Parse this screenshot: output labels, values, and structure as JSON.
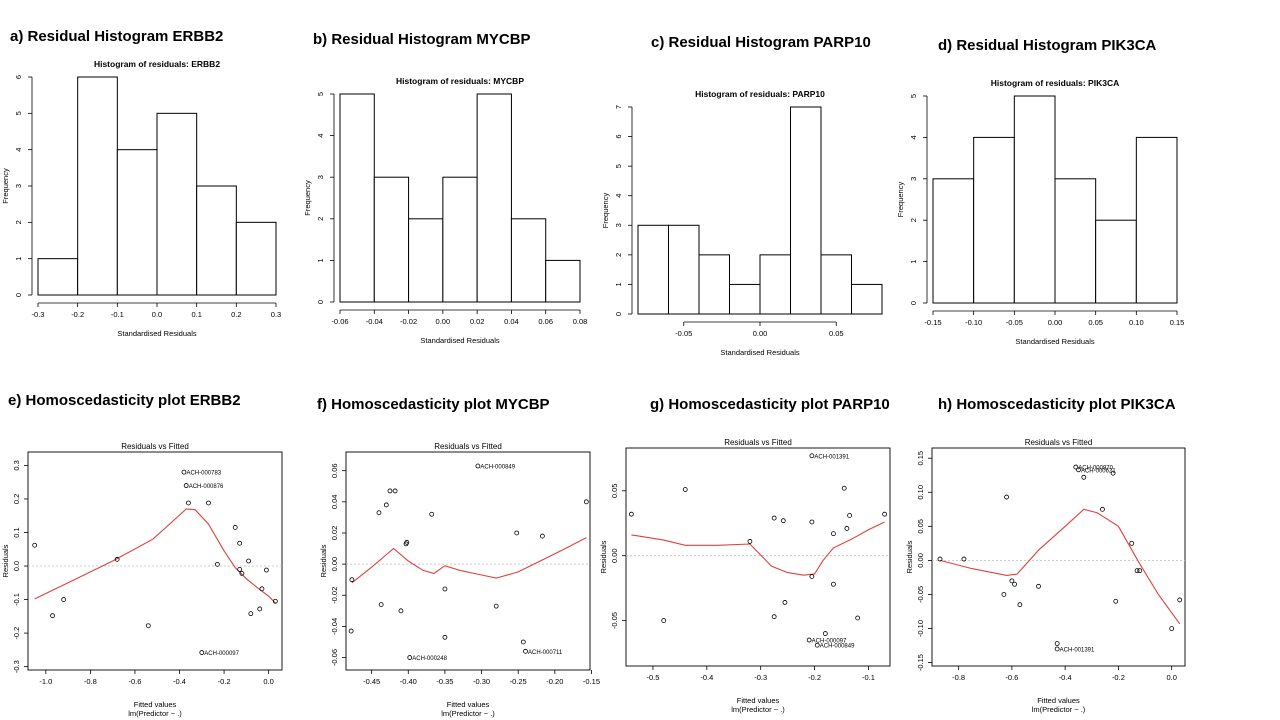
{
  "panels": [
    {
      "id": "a",
      "heading": "a) Residual Histogram ERBB2"
    },
    {
      "id": "b",
      "heading": "b) Residual Histogram MYCBP"
    },
    {
      "id": "c",
      "heading": "c) Residual Histogram PARP10"
    },
    {
      "id": "d",
      "heading": "d) Residual Histogram PIK3CA"
    },
    {
      "id": "e",
      "heading": "e) Homoscedasticity plot ERBB2"
    },
    {
      "id": "f",
      "heading": "f) Homoscedasticity plot MYCBP"
    },
    {
      "id": "g",
      "heading": "g) Homoscedasticity plot PARP10"
    },
    {
      "id": "h",
      "heading": "h) Homoscedasticity plot PIK3CA"
    }
  ],
  "chart_data": [
    {
      "type": "bar",
      "title": "Histogram of residuals: ERBB2",
      "xlabel": "Standardised Residuals",
      "ylabel": "Frequency",
      "bin_edges": [
        -0.3,
        -0.2,
        -0.1,
        0.0,
        0.1,
        0.2,
        0.3
      ],
      "values": [
        1,
        6,
        4,
        5,
        3,
        2
      ],
      "xlim": [
        -0.3,
        0.3
      ],
      "ylim": [
        0,
        6
      ],
      "xticks": [
        -0.3,
        -0.2,
        -0.1,
        0.0,
        0.1,
        0.2,
        0.3
      ],
      "xtick_labels": [
        "-0.3",
        "-0.2",
        "-0.1",
        "0.0",
        "0.1",
        "0.2",
        "0.3"
      ],
      "yticks": [
        0,
        1,
        2,
        3,
        4,
        5,
        6
      ],
      "grid": false
    },
    {
      "type": "bar",
      "title": "Histogram of residuals: MYCBP",
      "xlabel": "Standardised Residuals",
      "ylabel": "Frequency",
      "bin_edges": [
        -0.06,
        -0.04,
        -0.02,
        0.0,
        0.02,
        0.04,
        0.06,
        0.08
      ],
      "values": [
        5,
        3,
        2,
        3,
        5,
        2,
        1
      ],
      "xlim": [
        -0.06,
        0.08
      ],
      "ylim": [
        0,
        5
      ],
      "xticks": [
        -0.06,
        -0.04,
        -0.02,
        0.0,
        0.02,
        0.04,
        0.06,
        0.08
      ],
      "xtick_labels": [
        "-0.06",
        "-0.04",
        "-0.02",
        "0.00",
        "0.02",
        "0.04",
        "0.06",
        "0.08"
      ],
      "yticks": [
        0,
        1,
        2,
        3,
        4,
        5
      ],
      "grid": false
    },
    {
      "type": "bar",
      "title": "Histogram of residuals: PARP10",
      "xlabel": "Standardised Residuals",
      "ylabel": "Frequency",
      "bin_edges": [
        -0.08,
        -0.06,
        -0.04,
        -0.02,
        0.0,
        0.02,
        0.04,
        0.06,
        0.08
      ],
      "values": [
        3,
        3,
        2,
        1,
        2,
        7,
        2,
        1
      ],
      "xlim": [
        -0.08,
        0.08
      ],
      "ylim": [
        0,
        7
      ],
      "xticks": [
        -0.05,
        0.0,
        0.05
      ],
      "xtick_labels": [
        "-0.05",
        "0.00",
        "0.05"
      ],
      "yticks": [
        0,
        1,
        2,
        3,
        4,
        5,
        6,
        7
      ],
      "grid": false
    },
    {
      "type": "bar",
      "title": "Histogram of residuals: PIK3CA",
      "xlabel": "Standardised Residuals",
      "ylabel": "Frequency",
      "bin_edges": [
        -0.15,
        -0.1,
        -0.05,
        0.0,
        0.05,
        0.1,
        0.15
      ],
      "values": [
        3,
        4,
        5,
        3,
        2,
        4
      ],
      "xlim": [
        -0.15,
        0.15
      ],
      "ylim": [
        0,
        5
      ],
      "xticks": [
        -0.15,
        -0.1,
        -0.05,
        0.0,
        0.05,
        0.1,
        0.15
      ],
      "xtick_labels": [
        "-0.15",
        "-0.10",
        "-0.05",
        "0.00",
        "0.05",
        "0.10",
        "0.15"
      ],
      "yticks": [
        0,
        1,
        2,
        3,
        4,
        5
      ],
      "grid": false
    },
    {
      "type": "scatter",
      "title": "Residuals vs Fitted",
      "xlabel": "Fitted values",
      "xlabel2": "lm(Predictor ~ .)",
      "ylabel": "Residuals",
      "xlim": [
        -1.08,
        0.06
      ],
      "ylim": [
        -0.31,
        0.34
      ],
      "xticks": [
        -1.0,
        -0.8,
        -0.6,
        -0.4,
        -0.2,
        0.0
      ],
      "xtick_labels": [
        "-1.0",
        "-0.8",
        "-0.6",
        "-0.4",
        "-0.2",
        "0.0"
      ],
      "yticks": [
        -0.3,
        -0.2,
        -0.1,
        0.0,
        0.1,
        0.2,
        0.3
      ],
      "ytick_labels": [
        "-0.3",
        "-0.2",
        "-0.1",
        "0.0",
        "0.1",
        "0.2",
        "0.3"
      ],
      "points": [
        [
          -1.05,
          0.062
        ],
        [
          -0.97,
          -0.148
        ],
        [
          -0.92,
          -0.1
        ],
        [
          -0.68,
          0.02
        ],
        [
          -0.54,
          -0.178
        ],
        [
          -0.38,
          0.28
        ],
        [
          -0.37,
          0.24
        ],
        [
          -0.36,
          0.188
        ],
        [
          -0.3,
          -0.258
        ],
        [
          -0.27,
          0.188
        ],
        [
          -0.23,
          0.005
        ],
        [
          -0.15,
          0.115
        ],
        [
          -0.13,
          -0.01
        ],
        [
          -0.13,
          0.068
        ],
        [
          -0.12,
          -0.022
        ],
        [
          -0.09,
          0.015
        ],
        [
          -0.08,
          -0.142
        ],
        [
          -0.04,
          -0.128
        ],
        [
          -0.03,
          -0.068
        ],
        [
          -0.01,
          -0.012
        ],
        [
          0.03,
          -0.105
        ]
      ],
      "labels": [
        {
          "text": "ACH-000783",
          "x": -0.38,
          "y": 0.28
        },
        {
          "text": "ACH-000876",
          "x": -0.37,
          "y": 0.24
        },
        {
          "text": "ACH-000097",
          "x": -0.3,
          "y": -0.258
        }
      ],
      "smooth": [
        [
          -1.05,
          -0.098
        ],
        [
          -0.9,
          -0.05
        ],
        [
          -0.7,
          0.015
        ],
        [
          -0.52,
          0.08
        ],
        [
          -0.42,
          0.14
        ],
        [
          -0.37,
          0.17
        ],
        [
          -0.33,
          0.168
        ],
        [
          -0.27,
          0.125
        ],
        [
          -0.2,
          0.045
        ],
        [
          -0.15,
          -0.005
        ],
        [
          -0.1,
          -0.038
        ],
        [
          -0.05,
          -0.065
        ],
        [
          0.0,
          -0.09
        ],
        [
          0.03,
          -0.11
        ]
      ]
    },
    {
      "type": "scatter",
      "title": "Residuals vs Fitted",
      "xlabel": "Fitted values",
      "xlabel2": "lm(Predictor ~ .)",
      "ylabel": "Residuals",
      "xlim": [
        -0.485,
        -0.152
      ],
      "ylim": [
        -0.068,
        0.072
      ],
      "xticks": [
        -0.45,
        -0.4,
        -0.35,
        -0.3,
        -0.25,
        -0.2,
        -0.15
      ],
      "xtick_labels": [
        "-0.45",
        "-0.40",
        "-0.35",
        "-0.30",
        "-0.25",
        "-0.20",
        "-0.15"
      ],
      "yticks": [
        -0.06,
        -0.04,
        -0.02,
        0.0,
        0.02,
        0.04,
        0.06
      ],
      "ytick_labels": [
        "-0.06",
        "-0.04",
        "-0.02",
        "0.00",
        "0.02",
        "0.04",
        "0.06"
      ],
      "points": [
        [
          -0.478,
          -0.043
        ],
        [
          -0.477,
          -0.01
        ],
        [
          -0.44,
          0.033
        ],
        [
          -0.437,
          -0.026
        ],
        [
          -0.43,
          0.038
        ],
        [
          -0.425,
          0.047
        ],
        [
          -0.418,
          0.047
        ],
        [
          -0.41,
          -0.03
        ],
        [
          -0.403,
          0.013
        ],
        [
          -0.402,
          0.014
        ],
        [
          -0.398,
          -0.06
        ],
        [
          -0.368,
          0.032
        ],
        [
          -0.35,
          -0.016
        ],
        [
          -0.35,
          -0.047
        ],
        [
          -0.305,
          0.063
        ],
        [
          -0.28,
          -0.027
        ],
        [
          -0.252,
          0.02
        ],
        [
          -0.243,
          -0.05
        ],
        [
          -0.24,
          -0.056
        ],
        [
          -0.217,
          0.018
        ],
        [
          -0.157,
          0.04
        ]
      ],
      "labels": [
        {
          "text": "ACH-000849",
          "x": -0.305,
          "y": 0.063
        },
        {
          "text": "ACH-000248",
          "x": -0.398,
          "y": -0.06
        },
        {
          "text": "ACH-000711",
          "x": -0.24,
          "y": -0.056
        }
      ],
      "smooth": [
        [
          -0.477,
          -0.012
        ],
        [
          -0.45,
          -0.002
        ],
        [
          -0.42,
          0.01
        ],
        [
          -0.4,
          0.002
        ],
        [
          -0.38,
          -0.004
        ],
        [
          -0.365,
          -0.006
        ],
        [
          -0.35,
          -0.001
        ],
        [
          -0.33,
          -0.004
        ],
        [
          -0.3,
          -0.007
        ],
        [
          -0.28,
          -0.009
        ],
        [
          -0.25,
          -0.005
        ],
        [
          -0.22,
          0.002
        ],
        [
          -0.19,
          0.009
        ],
        [
          -0.157,
          0.017
        ]
      ]
    },
    {
      "type": "scatter",
      "title": "Residuals vs Fitted",
      "xlabel": "Fitted values",
      "xlabel2": "lm(Predictor ~ .)",
      "ylabel": "Residuals",
      "xlim": [
        -0.55,
        -0.06
      ],
      "ylim": [
        -0.085,
        0.083
      ],
      "xticks": [
        -0.5,
        -0.4,
        -0.3,
        -0.2,
        -0.1
      ],
      "xtick_labels": [
        "-0.5",
        "-0.4",
        "-0.3",
        "-0.2",
        "-0.1"
      ],
      "yticks": [
        -0.05,
        0.0,
        0.05
      ],
      "ytick_labels": [
        "-0.05",
        "0.00",
        "0.05"
      ],
      "points": [
        [
          -0.54,
          0.032
        ],
        [
          -0.48,
          -0.05
        ],
        [
          -0.44,
          0.051
        ],
        [
          -0.32,
          0.011
        ],
        [
          -0.275,
          0.029
        ],
        [
          -0.275,
          -0.047
        ],
        [
          -0.258,
          0.027
        ],
        [
          -0.255,
          -0.036
        ],
        [
          -0.205,
          0.077
        ],
        [
          -0.21,
          -0.065
        ],
        [
          -0.195,
          -0.069
        ],
        [
          -0.205,
          -0.016
        ],
        [
          -0.205,
          0.026
        ],
        [
          -0.18,
          -0.06
        ],
        [
          -0.165,
          0.017
        ],
        [
          -0.165,
          -0.022
        ],
        [
          -0.145,
          0.052
        ],
        [
          -0.14,
          0.021
        ],
        [
          -0.135,
          0.031
        ],
        [
          -0.12,
          -0.048
        ],
        [
          -0.07,
          0.032
        ]
      ],
      "labels": [
        {
          "text": "ACH-001391",
          "x": -0.205,
          "y": 0.077
        },
        {
          "text": "ACH-000097",
          "x": -0.21,
          "y": -0.065
        },
        {
          "text": "ACH-000849",
          "x": -0.195,
          "y": -0.069
        }
      ],
      "smooth": [
        [
          -0.54,
          0.016
        ],
        [
          -0.48,
          0.012
        ],
        [
          -0.44,
          0.008
        ],
        [
          -0.38,
          0.008
        ],
        [
          -0.32,
          0.009
        ],
        [
          -0.28,
          -0.008
        ],
        [
          -0.25,
          -0.013
        ],
        [
          -0.22,
          -0.015
        ],
        [
          -0.2,
          -0.014
        ],
        [
          -0.185,
          -0.004
        ],
        [
          -0.165,
          0.006
        ],
        [
          -0.13,
          0.013
        ],
        [
          -0.1,
          0.02
        ],
        [
          -0.07,
          0.026
        ]
      ]
    },
    {
      "type": "scatter",
      "title": "Residuals vs Fitted",
      "xlabel": "Fitted values",
      "xlabel2": "lm(Predictor ~ .)",
      "ylabel": "Residuals",
      "xlim": [
        -0.9,
        0.05
      ],
      "ylim": [
        -0.155,
        0.165
      ],
      "xticks": [
        -0.8,
        -0.6,
        -0.4,
        -0.2,
        0.0
      ],
      "xtick_labels": [
        "-0.8",
        "-0.6",
        "-0.4",
        "-0.2",
        "0.0"
      ],
      "yticks": [
        -0.15,
        -0.1,
        -0.05,
        0.0,
        0.05,
        0.1,
        0.15
      ],
      "ytick_labels": [
        "-0.15",
        "-0.10",
        "-0.05",
        "0.00",
        "0.05",
        "0.10",
        "0.15"
      ],
      "points": [
        [
          -0.87,
          0.002
        ],
        [
          -0.78,
          0.002
        ],
        [
          -0.63,
          -0.05
        ],
        [
          -0.62,
          0.093
        ],
        [
          -0.6,
          -0.03
        ],
        [
          -0.59,
          -0.035
        ],
        [
          -0.57,
          -0.065
        ],
        [
          -0.5,
          -0.038
        ],
        [
          -0.36,
          0.137
        ],
        [
          -0.35,
          0.133
        ],
        [
          -0.33,
          0.122
        ],
        [
          -0.43,
          -0.122
        ],
        [
          -0.43,
          -0.13
        ],
        [
          -0.26,
          0.075
        ],
        [
          -0.22,
          0.128
        ],
        [
          -0.21,
          -0.06
        ],
        [
          -0.15,
          0.025
        ],
        [
          -0.13,
          -0.015
        ],
        [
          -0.12,
          -0.015
        ],
        [
          0.0,
          -0.1
        ],
        [
          0.03,
          -0.058
        ]
      ],
      "labels": [
        {
          "text": "ACH-000970",
          "x": -0.36,
          "y": 0.137
        },
        {
          "text": "ACH-000621",
          "x": -0.35,
          "y": 0.133
        },
        {
          "text": "ACH-001391",
          "x": -0.43,
          "y": -0.13
        }
      ],
      "smooth": [
        [
          -0.87,
          0.0
        ],
        [
          -0.75,
          -0.012
        ],
        [
          -0.62,
          -0.022
        ],
        [
          -0.58,
          -0.02
        ],
        [
          -0.5,
          0.015
        ],
        [
          -0.4,
          0.05
        ],
        [
          -0.33,
          0.075
        ],
        [
          -0.28,
          0.07
        ],
        [
          -0.2,
          0.05
        ],
        [
          -0.12,
          -0.005
        ],
        [
          -0.05,
          -0.05
        ],
        [
          0.03,
          -0.093
        ]
      ]
    }
  ]
}
